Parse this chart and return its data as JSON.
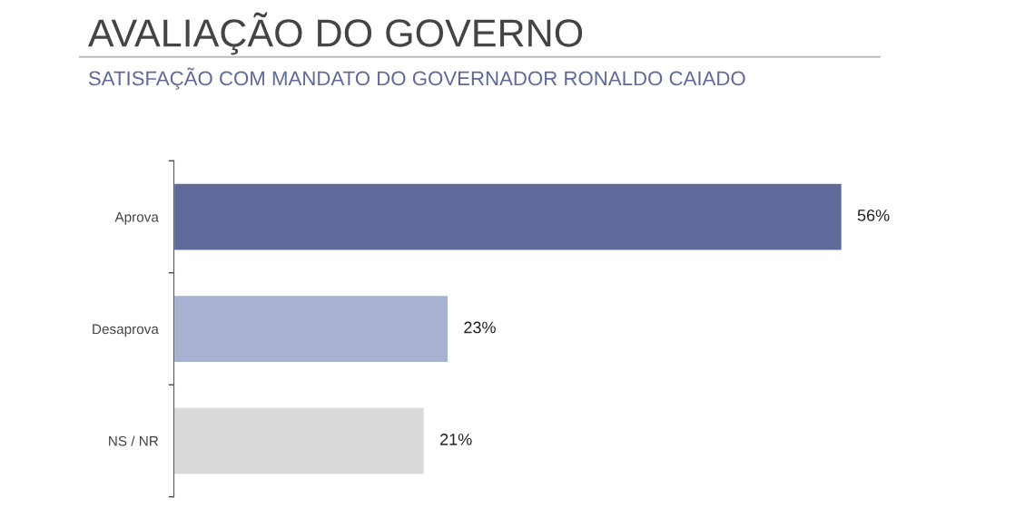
{
  "chart_data": {
    "type": "bar",
    "orientation": "horizontal",
    "title": "AVALIAÇÃO DO GOVERNO",
    "subtitle": "SATISFAÇÃO COM MANDATO DO GOVERNADOR RONALDO CAIADO",
    "categories": [
      "Aprova",
      "Desaprova",
      "NS / NR"
    ],
    "values": [
      56,
      23,
      21
    ],
    "colors": [
      "#5f6a9a",
      "#a8b1d1",
      "#d9d9d9"
    ],
    "value_labels": [
      "56%",
      "23%",
      "21%"
    ],
    "legend": false,
    "grid": false
  }
}
